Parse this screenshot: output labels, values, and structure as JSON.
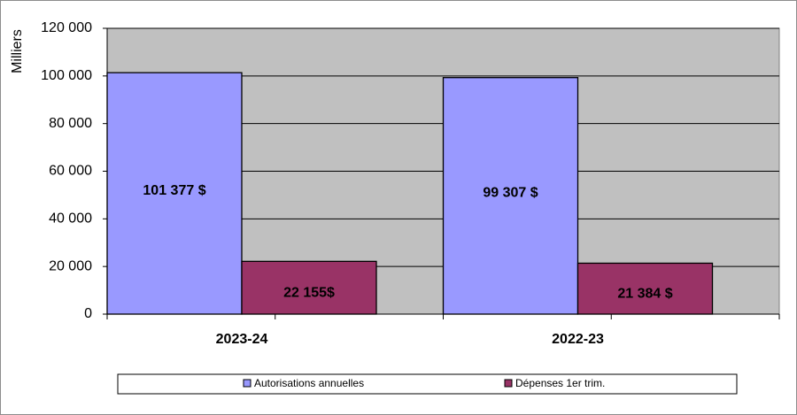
{
  "chart_data": {
    "type": "bar",
    "categories": [
      "2023-24",
      "2022-23"
    ],
    "series": [
      {
        "name": "Autorisations annuelles",
        "values": [
          101377,
          99307
        ],
        "labels": [
          "101 377 $",
          "99 307 $"
        ],
        "color": "#9999ff"
      },
      {
        "name": "Dépenses 1er trim.",
        "values": [
          22155,
          21384
        ],
        "labels": [
          "22 155$",
          "21 384 $"
        ],
        "color": "#993366"
      }
    ],
    "ylabel": "Milliers",
    "ylim": [
      0,
      120000
    ],
    "yticks": [
      0,
      20000,
      40000,
      60000,
      80000,
      100000,
      120000
    ],
    "ytick_labels": [
      "0",
      "20 000",
      "40 000",
      "60 000",
      "80 000",
      "100 000",
      "120 000"
    ],
    "plot_background": "#c0c0c0",
    "grid": true,
    "legend_position": "bottom"
  }
}
